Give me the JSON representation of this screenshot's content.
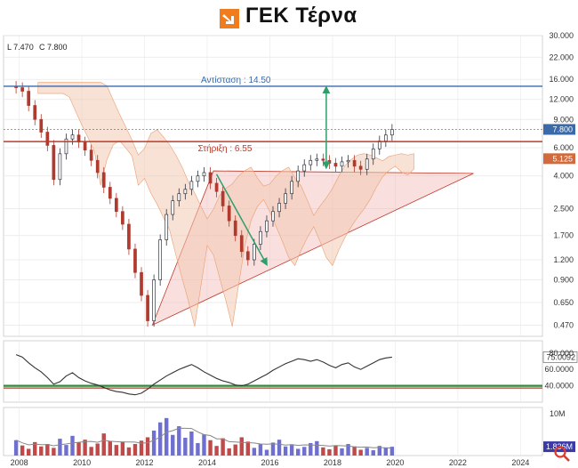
{
  "brand": {
    "title": "ΓΕΚ Τέρνα",
    "logo_icon": "orange-arrow-logo",
    "colors": {
      "accent": "#f07c1e",
      "text": "#111111"
    }
  },
  "ohlc": {
    "low_label": "L 7.470",
    "close_label": "C 7.800"
  },
  "chart_data": {
    "type": "candlestick",
    "scale": "log",
    "x": [
      2007.9,
      2008.1,
      2008.3,
      2008.5,
      2008.7,
      2008.9,
      2009.1,
      2009.3,
      2009.5,
      2009.7,
      2009.9,
      2010.1,
      2010.3,
      2010.5,
      2010.7,
      2010.9,
      2011.1,
      2011.3,
      2011.5,
      2011.7,
      2011.9,
      2012.1,
      2012.3,
      2012.5,
      2012.7,
      2012.9,
      2013.1,
      2013.3,
      2013.5,
      2013.7,
      2013.9,
      2014.1,
      2014.3,
      2014.5,
      2014.7,
      2014.9,
      2015.1,
      2015.3,
      2015.5,
      2015.7,
      2015.9,
      2016.1,
      2016.3,
      2016.5,
      2016.7,
      2016.9,
      2017.1,
      2017.3,
      2017.5,
      2017.7,
      2017.9,
      2018.1,
      2018.3,
      2018.5,
      2018.7,
      2018.9,
      2019.1,
      2019.3,
      2019.5,
      2019.7,
      2019.9
    ],
    "close": [
      14.2,
      13.5,
      11.0,
      9.0,
      7.5,
      6.2,
      3.8,
      5.5,
      6.8,
      7.2,
      6.5,
      5.8,
      5.0,
      4.2,
      3.4,
      2.9,
      2.4,
      2.0,
      1.4,
      1.0,
      0.72,
      0.5,
      0.9,
      1.6,
      2.3,
      2.8,
      3.1,
      3.3,
      3.7,
      4.0,
      4.2,
      3.6,
      3.2,
      2.6,
      2.1,
      1.7,
      1.35,
      1.2,
      1.5,
      1.8,
      2.1,
      2.4,
      2.7,
      3.1,
      3.7,
      4.3,
      4.7,
      5.0,
      5.1,
      5.0,
      4.8,
      4.6,
      4.9,
      5.0,
      4.6,
      4.4,
      5.1,
      5.9,
      6.6,
      7.2,
      7.8
    ],
    "ylim": [
      0.4,
      30
    ],
    "y_ticks": [
      "30.000",
      "22.000",
      "16.000",
      "12.000",
      "9.000",
      "6.000",
      "4.000",
      "2.500",
      "1.700",
      "1.200",
      "0.900",
      "0.650",
      "0.470"
    ],
    "x_ticks": [
      "2008",
      "2010",
      "2012",
      "2014",
      "2016",
      "2018",
      "2020",
      "2022",
      "2024"
    ],
    "annotations": {
      "resistance": {
        "label": "Αντίσταση : 14.50",
        "value": 14.5,
        "color": "#3a6aa8"
      },
      "support": {
        "label": "Στήριξη : 6.55",
        "value": 6.55,
        "color": "#c0392b"
      },
      "last_price_tag": {
        "label": "7.800",
        "value": 7.8,
        "color": "#3a6aa8"
      },
      "cloud_tag": {
        "label": "5.125",
        "value": 5.125,
        "color": "#d26a3c"
      }
    },
    "indicator_panel": {
      "y_ticks": [
        "80.000",
        "60.0000",
        "40.0000"
      ],
      "current_value_label": "75.0092",
      "ylim": [
        20,
        95
      ],
      "values": [
        78,
        75,
        68,
        62,
        57,
        50,
        42,
        45,
        52,
        56,
        50,
        46,
        43,
        41,
        38,
        35,
        33,
        32,
        30,
        29,
        31,
        36,
        42,
        47,
        52,
        56,
        60,
        63,
        66,
        62,
        57,
        53,
        49,
        46,
        44,
        41,
        40,
        42,
        46,
        50,
        54,
        59,
        63,
        67,
        70,
        73,
        72,
        70,
        72,
        69,
        65,
        62,
        66,
        68,
        63,
        60,
        64,
        68,
        72,
        74,
        75
      ]
    },
    "volume_panel": {
      "y_ticks": [
        "10M"
      ],
      "current_value_label": "1.836M",
      "ylim": [
        0,
        10
      ],
      "values": [
        3.2,
        2.1,
        1.4,
        2.8,
        1.9,
        2.4,
        1.6,
        3.5,
        2.2,
        4.1,
        2.7,
        3.3,
        1.8,
        2.5,
        4.6,
        3.0,
        2.2,
        2.9,
        1.7,
        2.4,
        3.1,
        3.8,
        5.2,
        6.9,
        7.8,
        4.3,
        6.1,
        3.7,
        5.0,
        2.6,
        4.4,
        3.2,
        2.0,
        3.6,
        1.5,
        2.3,
        3.8,
        2.9,
        1.6,
        2.4,
        1.2,
        2.7,
        3.3,
        1.9,
        2.2,
        1.4,
        1.8,
        2.6,
        3.0,
        1.7,
        1.3,
        2.1,
        1.5,
        2.4,
        1.9,
        1.2,
        1.6,
        1.1,
        2.0,
        1.7,
        1.836
      ]
    }
  }
}
